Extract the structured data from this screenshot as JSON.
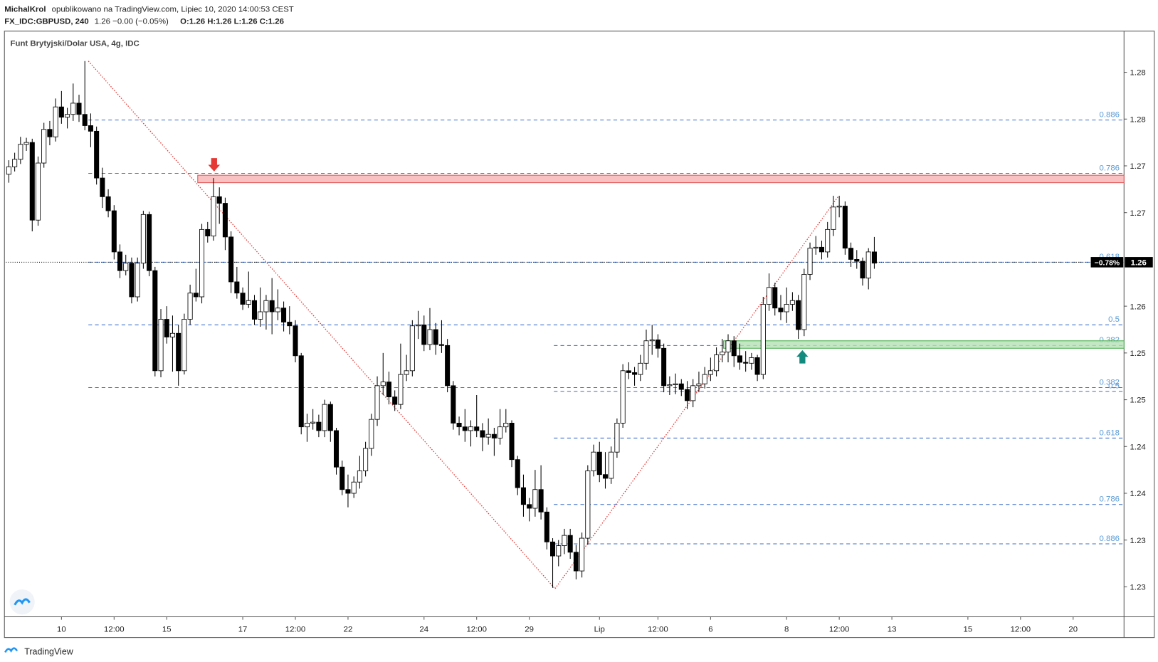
{
  "header": {
    "author": "MichalKrol",
    "published": "opublikowano na TradingView.com, Lipiec 10, 2020 14:00:53 CEST",
    "symbol": "FX_IDC:GBPUSD, 240",
    "quote": "1.26 −0.00 (−0.05%)",
    "ohlc_text": "O:1.26 H:1.26 L:1.26 C:1.26"
  },
  "footer": {
    "brand": "TradingView"
  },
  "chart_data": {
    "type": "candlestick",
    "title": "Funt Brytyjski/Dolar USA, 4g, IDC",
    "up_color": "#ffffff",
    "down_color": "#000000",
    "xlim": [
      -0.5,
      190.7
    ],
    "ylim": [
      1.2268,
      1.2894
    ],
    "xticks": [
      {
        "value": 9,
        "label": "10"
      },
      {
        "value": 18,
        "label": "12:00"
      },
      {
        "value": 27,
        "label": "15"
      },
      {
        "value": 40,
        "label": "17"
      },
      {
        "value": 49,
        "label": "12:00"
      },
      {
        "value": 58,
        "label": "22"
      },
      {
        "value": 71,
        "label": "24"
      },
      {
        "value": 80,
        "label": "12:00"
      },
      {
        "value": 89,
        "label": "29"
      },
      {
        "value": 101,
        "label": "Lip"
      },
      {
        "value": 111,
        "label": "12:00"
      },
      {
        "value": 120,
        "label": "6"
      },
      {
        "value": 133,
        "label": "8"
      },
      {
        "value": 142,
        "label": "12:00"
      },
      {
        "value": 151,
        "label": "13"
      },
      {
        "value": 164,
        "label": "15"
      },
      {
        "value": 173,
        "label": "12:00"
      },
      {
        "value": 182,
        "label": "20"
      }
    ],
    "yticks": [
      {
        "value": 1.285,
        "label": "1.28"
      },
      {
        "value": 1.28,
        "label": "1.28"
      },
      {
        "value": 1.275,
        "label": "1.27"
      },
      {
        "value": 1.27,
        "label": "1.27"
      },
      {
        "value": 1.26,
        "label": "1.26"
      },
      {
        "value": 1.255,
        "label": "1.25"
      },
      {
        "value": 1.25,
        "label": "1.25"
      },
      {
        "value": 1.245,
        "label": "1.24"
      },
      {
        "value": 1.24,
        "label": "1.24"
      },
      {
        "value": 1.235,
        "label": "1.23"
      },
      {
        "value": 1.23,
        "label": "1.23"
      }
    ],
    "current_price": {
      "value": 1.2647,
      "label": "1.26",
      "change": "−0.78%"
    },
    "ohlc": [
      [
        1.2741,
        1.2756,
        1.2732,
        1.2749
      ],
      [
        1.2749,
        1.2764,
        1.2744,
        1.2757
      ],
      [
        1.2757,
        1.2781,
        1.2752,
        1.2773
      ],
      [
        1.2773,
        1.278,
        1.2766,
        1.2775
      ],
      [
        1.2775,
        1.2779,
        1.268,
        1.2692
      ],
      [
        1.2692,
        1.276,
        1.2686,
        1.2753
      ],
      [
        1.2753,
        1.2796,
        1.2748,
        1.2789
      ],
      [
        1.2789,
        1.2798,
        1.2772,
        1.2781
      ],
      [
        1.2781,
        1.2822,
        1.2776,
        1.2813
      ],
      [
        1.2813,
        1.283,
        1.2795,
        1.2802
      ],
      [
        1.2802,
        1.2812,
        1.279,
        1.2805
      ],
      [
        1.2805,
        1.2838,
        1.2798,
        1.2817
      ],
      [
        1.2817,
        1.2826,
        1.2797,
        1.2805
      ],
      [
        1.2805,
        1.2862,
        1.2788,
        1.2793
      ],
      [
        1.2793,
        1.2806,
        1.277,
        1.2787
      ],
      [
        1.2787,
        1.2792,
        1.273,
        1.2737
      ],
      [
        1.2737,
        1.2748,
        1.2705,
        1.2717
      ],
      [
        1.2717,
        1.2725,
        1.2695,
        1.2702
      ],
      [
        1.2702,
        1.2708,
        1.265,
        1.2658
      ],
      [
        1.2658,
        1.2666,
        1.263,
        1.2638
      ],
      [
        1.2638,
        1.2655,
        1.2633,
        1.2646
      ],
      [
        1.2646,
        1.2652,
        1.2603,
        1.261
      ],
      [
        1.261,
        1.2652,
        1.2605,
        1.2646
      ],
      [
        1.2646,
        1.2702,
        1.264,
        1.2698
      ],
      [
        1.2698,
        1.2701,
        1.2632,
        1.2638
      ],
      [
        1.2638,
        1.2642,
        1.2525,
        1.2531
      ],
      [
        1.2531,
        1.2597,
        1.2524,
        1.2586
      ],
      [
        1.2586,
        1.26,
        1.256,
        1.2567
      ],
      [
        1.2567,
        1.259,
        1.253,
        1.2571
      ],
      [
        1.2571,
        1.258,
        1.2515,
        1.2531
      ],
      [
        1.2531,
        1.2592,
        1.2527,
        1.2586
      ],
      [
        1.2586,
        1.2623,
        1.258,
        1.2614
      ],
      [
        1.2614,
        1.264,
        1.2605,
        1.261
      ],
      [
        1.261,
        1.2688,
        1.2603,
        1.2682
      ],
      [
        1.2682,
        1.269,
        1.2668,
        1.2675
      ],
      [
        1.2675,
        1.2737,
        1.267,
        1.2717
      ],
      [
        1.2717,
        1.2727,
        1.2688,
        1.271
      ],
      [
        1.271,
        1.2716,
        1.266,
        1.2674
      ],
      [
        1.2674,
        1.268,
        1.2614,
        1.2626
      ],
      [
        1.2626,
        1.2642,
        1.2608,
        1.2614
      ],
      [
        1.2614,
        1.262,
        1.2596,
        1.2602
      ],
      [
        1.2602,
        1.2637,
        1.2598,
        1.2606
      ],
      [
        1.2606,
        1.2612,
        1.258,
        1.2586
      ],
      [
        1.2586,
        1.262,
        1.2578,
        1.2594
      ],
      [
        1.2594,
        1.2612,
        1.2575,
        1.2606
      ],
      [
        1.2606,
        1.263,
        1.257,
        1.2594
      ],
      [
        1.2594,
        1.2618,
        1.2585,
        1.2598
      ],
      [
        1.2598,
        1.2605,
        1.2573,
        1.2583
      ],
      [
        1.2583,
        1.26,
        1.257,
        1.2579
      ],
      [
        1.2579,
        1.2585,
        1.254,
        1.2547
      ],
      [
        1.2547,
        1.255,
        1.2463,
        1.2471
      ],
      [
        1.2471,
        1.2485,
        1.2455,
        1.2475
      ],
      [
        1.2475,
        1.249,
        1.2468,
        1.2476
      ],
      [
        1.2476,
        1.2484,
        1.246,
        1.2467
      ],
      [
        1.2467,
        1.25,
        1.246,
        1.2495
      ],
      [
        1.2495,
        1.2498,
        1.2455,
        1.2467
      ],
      [
        1.2467,
        1.247,
        1.242,
        1.2428
      ],
      [
        1.2428,
        1.2435,
        1.2398,
        1.2404
      ],
      [
        1.2404,
        1.242,
        1.2385,
        1.24
      ],
      [
        1.24,
        1.2418,
        1.2395,
        1.2412
      ],
      [
        1.2412,
        1.244,
        1.2405,
        1.2424
      ],
      [
        1.2424,
        1.2455,
        1.2418,
        1.2448
      ],
      [
        1.2448,
        1.2485,
        1.244,
        1.2479
      ],
      [
        1.2479,
        1.2525,
        1.2472,
        1.2515
      ],
      [
        1.2515,
        1.255,
        1.2505,
        1.2519
      ],
      [
        1.2519,
        1.253,
        1.2495,
        1.2503
      ],
      [
        1.2503,
        1.251,
        1.2488,
        1.2495
      ],
      [
        1.2495,
        1.256,
        1.249,
        1.2527
      ],
      [
        1.2527,
        1.2548,
        1.252,
        1.2531
      ],
      [
        1.2531,
        1.2585,
        1.2525,
        1.2579
      ],
      [
        1.2579,
        1.2595,
        1.2565,
        1.258
      ],
      [
        1.258,
        1.259,
        1.2552,
        1.2559
      ],
      [
        1.2559,
        1.2598,
        1.2553,
        1.2575
      ],
      [
        1.2575,
        1.2582,
        1.2548,
        1.2559
      ],
      [
        1.2559,
        1.2585,
        1.255,
        1.2558
      ],
      [
        1.2558,
        1.2565,
        1.2508,
        1.2515
      ],
      [
        1.2515,
        1.252,
        1.2468,
        1.2475
      ],
      [
        1.2475,
        1.2482,
        1.2462,
        1.2471
      ],
      [
        1.2471,
        1.249,
        1.2455,
        1.2467
      ],
      [
        1.2467,
        1.2478,
        1.245,
        1.2471
      ],
      [
        1.2471,
        1.2505,
        1.246,
        1.2467
      ],
      [
        1.2467,
        1.2475,
        1.2445,
        1.246
      ],
      [
        1.246,
        1.248,
        1.2452,
        1.2463
      ],
      [
        1.2463,
        1.247,
        1.244,
        1.2459
      ],
      [
        1.2459,
        1.249,
        1.2452,
        1.2471
      ],
      [
        1.2471,
        1.249,
        1.2465,
        1.2475
      ],
      [
        1.2475,
        1.2478,
        1.2428,
        1.2436
      ],
      [
        1.2436,
        1.244,
        1.2398,
        1.2406
      ],
      [
        1.2406,
        1.242,
        1.2375,
        1.2388
      ],
      [
        1.2388,
        1.2395,
        1.237,
        1.2384
      ],
      [
        1.2384,
        1.2425,
        1.2375,
        1.2404
      ],
      [
        1.2404,
        1.243,
        1.2372,
        1.238
      ],
      [
        1.238,
        1.2385,
        1.234,
        1.2348
      ],
      [
        1.2348,
        1.2352,
        1.2299,
        1.2333
      ],
      [
        1.2333,
        1.235,
        1.2322,
        1.2344
      ],
      [
        1.2344,
        1.2362,
        1.2335,
        1.2355
      ],
      [
        1.2355,
        1.2362,
        1.233,
        1.2337
      ],
      [
        1.2337,
        1.2345,
        1.2308,
        1.2317
      ],
      [
        1.2317,
        1.2358,
        1.231,
        1.2352
      ],
      [
        1.2352,
        1.243,
        1.2345,
        1.2424
      ],
      [
        1.2424,
        1.2452,
        1.2418,
        1.2444
      ],
      [
        1.2444,
        1.2455,
        1.2412,
        1.242
      ],
      [
        1.242,
        1.2444,
        1.2405,
        1.2416
      ],
      [
        1.2416,
        1.245,
        1.241,
        1.2444
      ],
      [
        1.2444,
        1.248,
        1.2438,
        1.2475
      ],
      [
        1.2475,
        1.2538,
        1.247,
        1.2531
      ],
      [
        1.2531,
        1.254,
        1.2522,
        1.2529
      ],
      [
        1.2529,
        1.2535,
        1.2515,
        1.2527
      ],
      [
        1.2527,
        1.2548,
        1.252,
        1.2539
      ],
      [
        1.2539,
        1.2575,
        1.2532,
        1.2563
      ],
      [
        1.2563,
        1.258,
        1.2548,
        1.2564
      ],
      [
        1.2564,
        1.257,
        1.2545,
        1.2555
      ],
      [
        1.2555,
        1.256,
        1.2508,
        1.2515
      ],
      [
        1.2515,
        1.2525,
        1.2505,
        1.2516
      ],
      [
        1.2516,
        1.2528,
        1.2506,
        1.2517
      ],
      [
        1.2517,
        1.2522,
        1.2504,
        1.2511
      ],
      [
        1.2511,
        1.252,
        1.249,
        1.2499
      ],
      [
        1.2499,
        1.2522,
        1.2492,
        1.2515
      ],
      [
        1.2515,
        1.253,
        1.2508,
        1.2517
      ],
      [
        1.2517,
        1.2535,
        1.2512,
        1.2527
      ],
      [
        1.2527,
        1.2545,
        1.252,
        1.2531
      ],
      [
        1.2531,
        1.2556,
        1.2525,
        1.2548
      ],
      [
        1.2548,
        1.2565,
        1.254,
        1.2551
      ],
      [
        1.2551,
        1.257,
        1.254,
        1.2563
      ],
      [
        1.2563,
        1.2568,
        1.2535,
        1.2547
      ],
      [
        1.2547,
        1.256,
        1.2532,
        1.254
      ],
      [
        1.254,
        1.2552,
        1.253,
        1.2539
      ],
      [
        1.2539,
        1.255,
        1.2532,
        1.2545
      ],
      [
        1.2545,
        1.2548,
        1.252,
        1.2527
      ],
      [
        1.2527,
        1.261,
        1.2522,
        1.2602
      ],
      [
        1.2602,
        1.2635,
        1.2595,
        1.262
      ],
      [
        1.262,
        1.2625,
        1.259,
        1.2598
      ],
      [
        1.2598,
        1.2612,
        1.2585,
        1.2594
      ],
      [
        1.2594,
        1.262,
        1.2582,
        1.2602
      ],
      [
        1.2602,
        1.2615,
        1.2595,
        1.2606
      ],
      [
        1.2606,
        1.2612,
        1.2565,
        1.2575
      ],
      [
        1.2575,
        1.264,
        1.2568,
        1.2634
      ],
      [
        1.2634,
        1.2668,
        1.2628,
        1.2662
      ],
      [
        1.2662,
        1.2675,
        1.2655,
        1.2663
      ],
      [
        1.2663,
        1.267,
        1.265,
        1.2658
      ],
      [
        1.2658,
        1.269,
        1.2652,
        1.2682
      ],
      [
        1.2682,
        1.2718,
        1.2675,
        1.2706
      ],
      [
        1.2706,
        1.2718,
        1.2695,
        1.2707
      ],
      [
        1.2707,
        1.2712,
        1.2655,
        1.2662
      ],
      [
        1.2662,
        1.2668,
        1.2642,
        1.265
      ],
      [
        1.265,
        1.266,
        1.264,
        1.2648
      ],
      [
        1.2648,
        1.2652,
        1.2622,
        1.263
      ],
      [
        1.263,
        1.2662,
        1.2618,
        1.2658
      ],
      [
        1.2658,
        1.2674,
        1.264,
        1.2646
      ]
    ],
    "trend_line": {
      "color": "#e53935",
      "x": [
        13.6,
        93.4,
        141.8
      ],
      "y": [
        1.2862,
        1.2298,
        1.2717
      ]
    },
    "fib_sets": [
      {
        "start": 13.6,
        "color": "#3d6fc9",
        "label_color": "#5b9bd5",
        "levels": [
          {
            "label": "0.886",
            "value": 1.2799
          },
          {
            "label": "0.786",
            "value": 1.2742
          },
          {
            "label": "0.618",
            "value": 1.2647
          },
          {
            "label": "0.5",
            "value": 1.258
          },
          {
            "label": "0.382",
            "value": 1.2513
          }
        ]
      },
      {
        "start": 93.2,
        "color": "#3d6fc9",
        "label_color": "#5b9bd5",
        "levels": [
          {
            "label": "0.382",
            "value": 1.2558
          },
          {
            "label": "0.5",
            "value": 1.2509
          },
          {
            "label": "0.618",
            "value": 1.2459
          },
          {
            "label": "0.786",
            "value": 1.2388
          },
          {
            "label": "0.886",
            "value": 1.2346
          }
        ]
      }
    ],
    "zones": [
      {
        "start": 32.3,
        "top": 1.274,
        "bottom": 1.2732,
        "color": "#f7b2b2",
        "border": "#e05555"
      },
      {
        "start": 122.2,
        "top": 1.2563,
        "bottom": 1.2555,
        "color": "#b4e0b4",
        "border": "#4caf50"
      }
    ],
    "arrows": [
      {
        "x": 35.1,
        "y": 1.2744,
        "direction": "down",
        "color": "#e53935"
      },
      {
        "x": 135.7,
        "y": 1.2553,
        "direction": "up",
        "color": "#138a7e"
      }
    ]
  }
}
